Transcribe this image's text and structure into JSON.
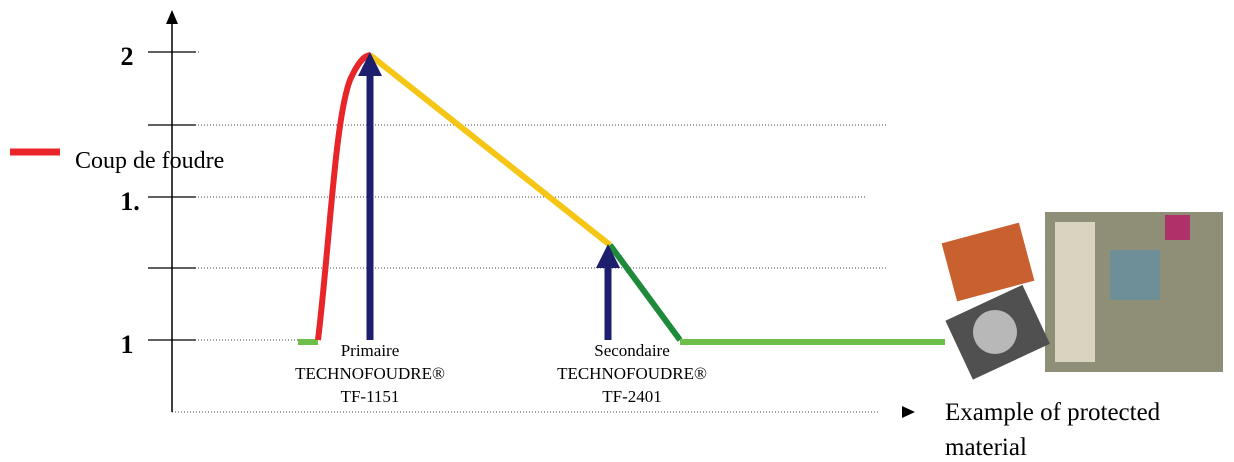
{
  "axis": {
    "labels": [
      "2",
      "1.",
      "1"
    ]
  },
  "legend": {
    "label": "Coup de foudre"
  },
  "protectors": [
    {
      "line1": "Primaire",
      "line2": "TECHNOFOUDRE®",
      "line3": "TF-1151"
    },
    {
      "line1": "Secondaire",
      "line2": "TECHNOFOUDRE®",
      "line3": "TF-2401"
    }
  ],
  "caption": {
    "line1": "Example of  protected",
    "line2": "material"
  }
}
